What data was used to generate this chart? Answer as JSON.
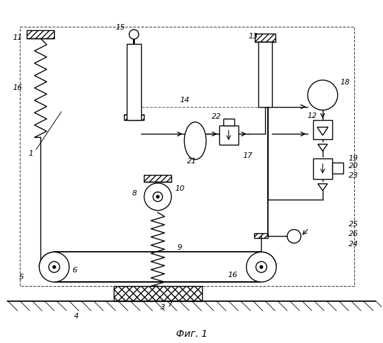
{
  "title": "Фиг. 1",
  "bg_color": "#ffffff",
  "line_color": "#000000",
  "figsize": [
    5.59,
    5.0
  ],
  "dpi": 100
}
